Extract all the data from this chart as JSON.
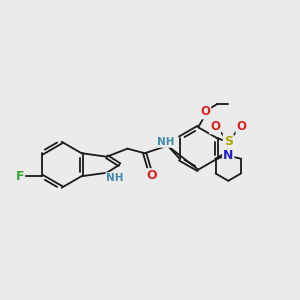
{
  "background_color": "#ebebeb",
  "bond_color": "#1a1a1a",
  "atom_colors": {
    "F": "#33aa33",
    "N": "#2222cc",
    "NH_blue": "#4488aa",
    "O": "#dd2222",
    "S": "#aaaa00",
    "C": "#1a1a1a"
  },
  "figsize": [
    3.0,
    3.0
  ],
  "dpi": 100
}
